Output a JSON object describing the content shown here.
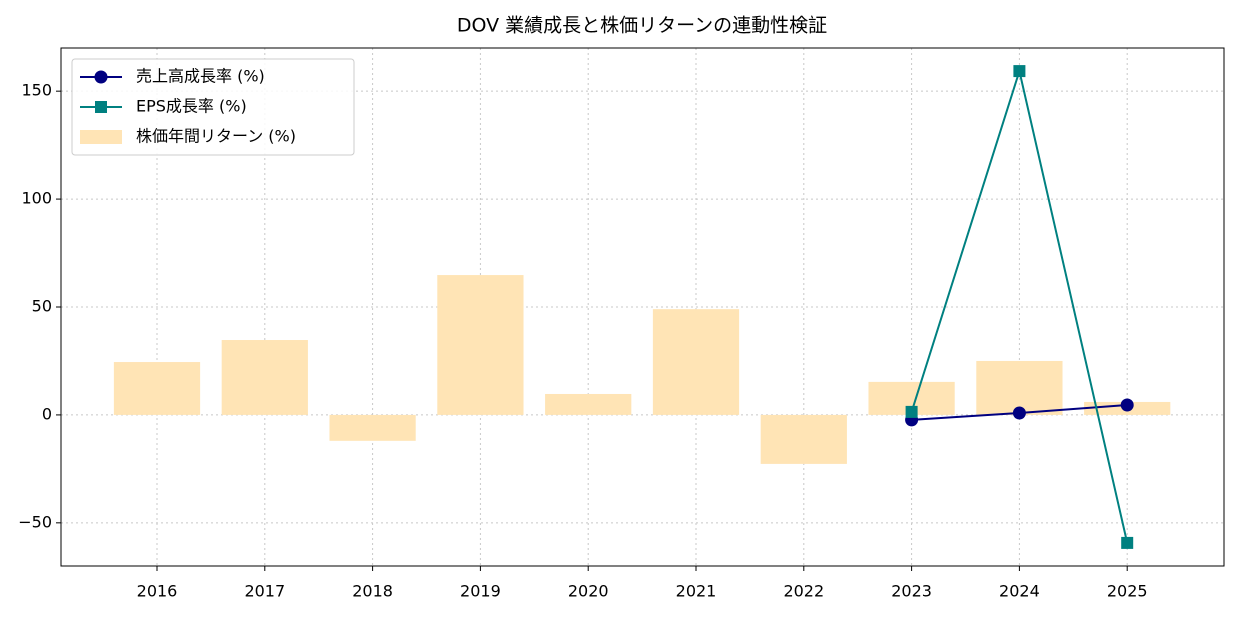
{
  "chart_data": {
    "type": "bar",
    "title": "DOV 業績成長と株価リターンの連動性検証",
    "categories": [
      "2016",
      "2017",
      "2018",
      "2019",
      "2020",
      "2021",
      "2022",
      "2023",
      "2024",
      "2025"
    ],
    "series": [
      {
        "name": "売上高成長率 (%)",
        "type": "line",
        "marker": "circle",
        "color": "#000080",
        "values": [
          null,
          null,
          null,
          null,
          null,
          null,
          null,
          -2.3,
          0.9,
          4.6
        ]
      },
      {
        "name": "EPS成長率 (%)",
        "type": "line",
        "marker": "square",
        "color": "#008080",
        "values": [
          null,
          null,
          null,
          null,
          null,
          null,
          null,
          1.4,
          159.3,
          -59.3
        ]
      },
      {
        "name": "株価年間リターン (%)",
        "type": "bar",
        "color": "#ffe4b5",
        "values": [
          24.5,
          34.7,
          -12,
          64.8,
          9.7,
          49,
          -22.7,
          15.3,
          25,
          6
        ]
      }
    ],
    "ylim": [
      -70,
      170
    ],
    "yticks": [
      {
        "value": -50,
        "label": "−50"
      },
      0,
      50,
      100,
      150
    ],
    "grid": true,
    "legend": "upper left"
  }
}
